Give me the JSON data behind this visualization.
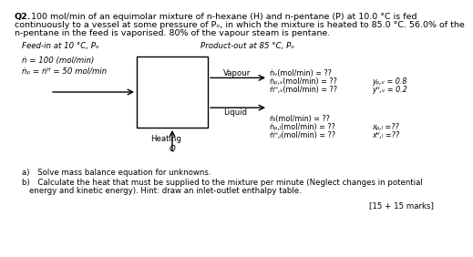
{
  "bg_color": "#ffffff",
  "text_color": "#000000",
  "box_color": "#000000",
  "title_bold": "Q2.",
  "title_rest": " 100 mol/min of an equimolar mixture of n-hexane (H) and n-pentane (P) at 10.0 °C is fed",
  "title_line2": "continuously to a vessel at some pressure of Pₒ, in which the mixture is heated to 85.0 °C. 56.0% of the",
  "title_line3": "n-pentane in the feed is vaporised. 80% of the vapour steam is pentane.",
  "feed_header": "Feed-in at 10 °C, Pₒ",
  "product_header": "Product-out at 85 °C, Pₒ",
  "feed1": "ṅ = 100 (mol/min)",
  "feed2": "ṅₚ = ṅᴴ = 50 mol/min",
  "vapour_lbl": "Vapour",
  "liquid_lbl": "Liquid",
  "heating_lbl": "Heating",
  "q_lbl": "Q̇",
  "v_out1": "ṅᵥ(mol/min) = ??",
  "v_out2": "ṅₚ,ᵥ(mol/min) = ??",
  "v_out3": "ṅᴴ,ᵥ(mol/min) = ??",
  "yp": "yₚ,ᵥ = 0.8",
  "yh": "yᴴ,ᵥ = 0.2",
  "l_out1": "ṅₗ(mol/min) = ??",
  "l_out2": "ṅₚ,ₗ(mol/min) = ??",
  "l_out3": "ṅᴴ,ₗ(mol/min) = ??",
  "xp": "xₚ,ₗ =??",
  "xh": "xᴴ,ₗ =??",
  "part_a": "a) Solve mass balance equation for unknowns.",
  "part_b1": "b) Calculate the heat that must be supplied to the mixture per minute (Neglect changes in potential",
  "part_b2": "   energy and kinetic energy). Hint: draw an inlet-outlet enthalpy table.",
  "marks": "[15 + 15 marks]"
}
